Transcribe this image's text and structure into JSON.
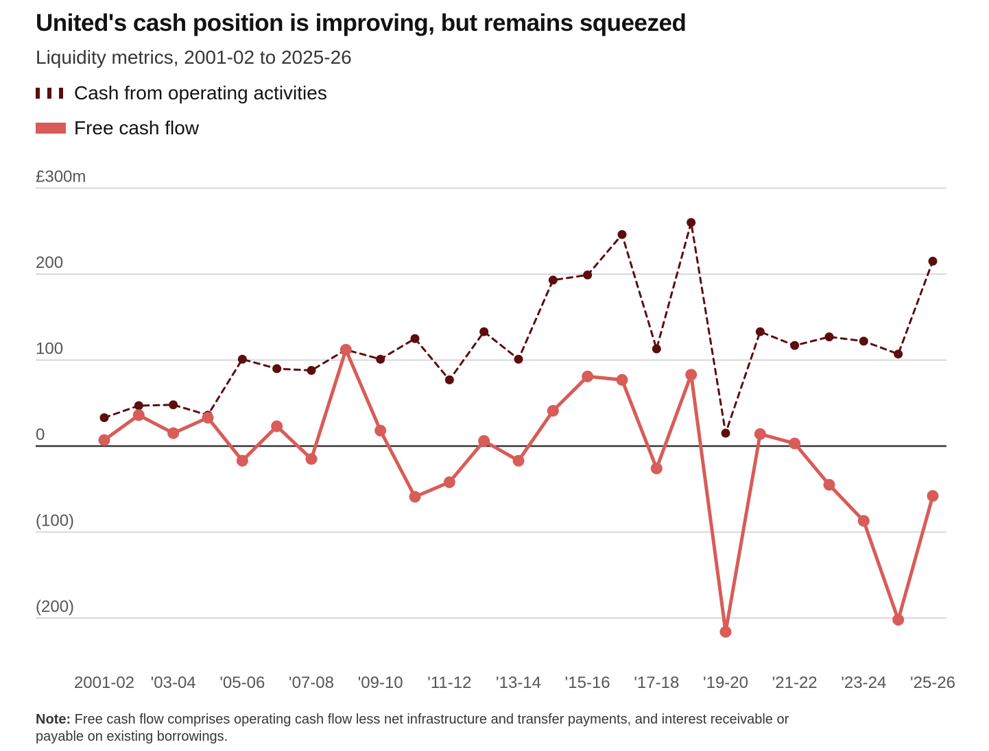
{
  "header": {
    "title": "United's cash position is improving, but remains squeezed",
    "subtitle": "Liquidity metrics, 2001-02 to 2025-26"
  },
  "legend": {
    "items": [
      {
        "label": "Cash from operating activities"
      },
      {
        "label": "Free cash flow"
      }
    ]
  },
  "note": {
    "label": "Note:",
    "text": "Free cash flow comprises operating cash flow less net infrastructure and transfer payments, and interest receivable or payable on existing borrowings."
  },
  "colors": {
    "operating": "#5c0d0e",
    "free": "#d85c58",
    "grid": "#cccccc",
    "zero": "#333333",
    "tick_text": "#555555"
  },
  "chart_data": {
    "type": "line",
    "x": [
      "2001-02",
      "2002-03",
      "2003-04",
      "2004-05",
      "2005-06",
      "2006-07",
      "2007-08",
      "2008-09",
      "2009-10",
      "2010-11",
      "2011-12",
      "2012-13",
      "2013-14",
      "2014-15",
      "2015-16",
      "2016-17",
      "2017-18",
      "2018-19",
      "2019-20",
      "2020-21",
      "2021-22",
      "2022-23",
      "2023-24",
      "2024-25",
      "2025-26"
    ],
    "x_tick_labels": [
      {
        "x": "2001-02",
        "label": "2001-02"
      },
      {
        "x": "2003-04",
        "label": "'03-04"
      },
      {
        "x": "2005-06",
        "label": "'05-06"
      },
      {
        "x": "2007-08",
        "label": "'07-08"
      },
      {
        "x": "2009-10",
        "label": "'09-10"
      },
      {
        "x": "2011-12",
        "label": "'11-12"
      },
      {
        "x": "2013-14",
        "label": "'13-14"
      },
      {
        "x": "2015-16",
        "label": "'15-16"
      },
      {
        "x": "2017-18",
        "label": "'17-18"
      },
      {
        "x": "2019-20",
        "label": "'19-20"
      },
      {
        "x": "2021-22",
        "label": "'21-22"
      },
      {
        "x": "2023-24",
        "label": "'23-24"
      },
      {
        "x": "2025-26",
        "label": "'25-26"
      }
    ],
    "y_ticks": [
      {
        "value": 300,
        "label": "£300m"
      },
      {
        "value": 200,
        "label": "200"
      },
      {
        "value": 100,
        "label": "100"
      },
      {
        "value": 0,
        "label": "0"
      },
      {
        "value": -100,
        "label": "(100)"
      },
      {
        "value": -200,
        "label": "(200)"
      }
    ],
    "ylim": [
      -240,
      300
    ],
    "grid": true,
    "legend_position": "top-left",
    "series": [
      {
        "name": "Cash from operating activities",
        "style": "dashed",
        "values": [
          33,
          47,
          48,
          36,
          101,
          90,
          88,
          112,
          101,
          125,
          77,
          133,
          101,
          193,
          199,
          246,
          113,
          260,
          15,
          133,
          117,
          127,
          122,
          107,
          215
        ]
      },
      {
        "name": "Free cash flow",
        "style": "solid",
        "values": [
          7,
          36,
          15,
          33,
          -17,
          23,
          -15,
          112,
          18,
          -59,
          -42,
          6,
          -17,
          41,
          81,
          77,
          -26,
          83,
          -216,
          14,
          3,
          -45,
          -87,
          -202,
          -58
        ]
      }
    ]
  }
}
